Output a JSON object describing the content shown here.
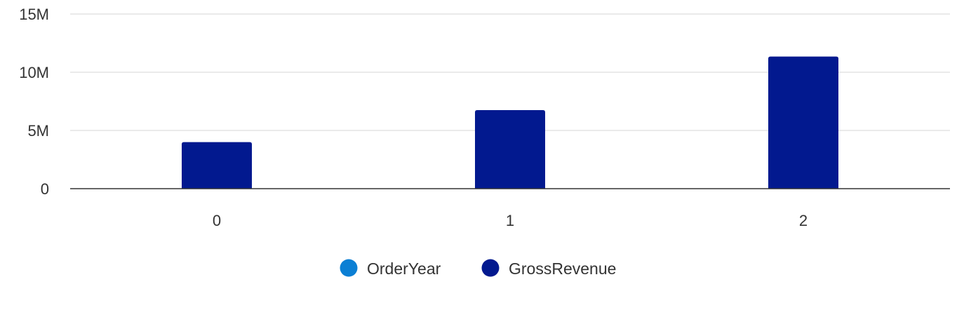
{
  "chart_data": {
    "type": "bar",
    "categories": [
      "0",
      "1",
      "2"
    ],
    "series": [
      {
        "name": "OrderYear",
        "values": [
          0,
          1,
          2
        ],
        "color": "#0b7fd4"
      },
      {
        "name": "GrossRevenue",
        "values": [
          4000000,
          6750000,
          11350000
        ],
        "color": "#02198f"
      }
    ],
    "ylim": [
      0,
      15000000
    ],
    "yticks": [
      {
        "value": 0,
        "label": "0"
      },
      {
        "value": 5000000,
        "label": "5M"
      },
      {
        "value": 10000000,
        "label": "10M"
      },
      {
        "value": 15000000,
        "label": "15M"
      }
    ],
    "grid": true,
    "legend_position": "bottom-center",
    "colors": {
      "grid": "#e3e3e3",
      "axis": "#333333",
      "text": "#333333"
    }
  }
}
